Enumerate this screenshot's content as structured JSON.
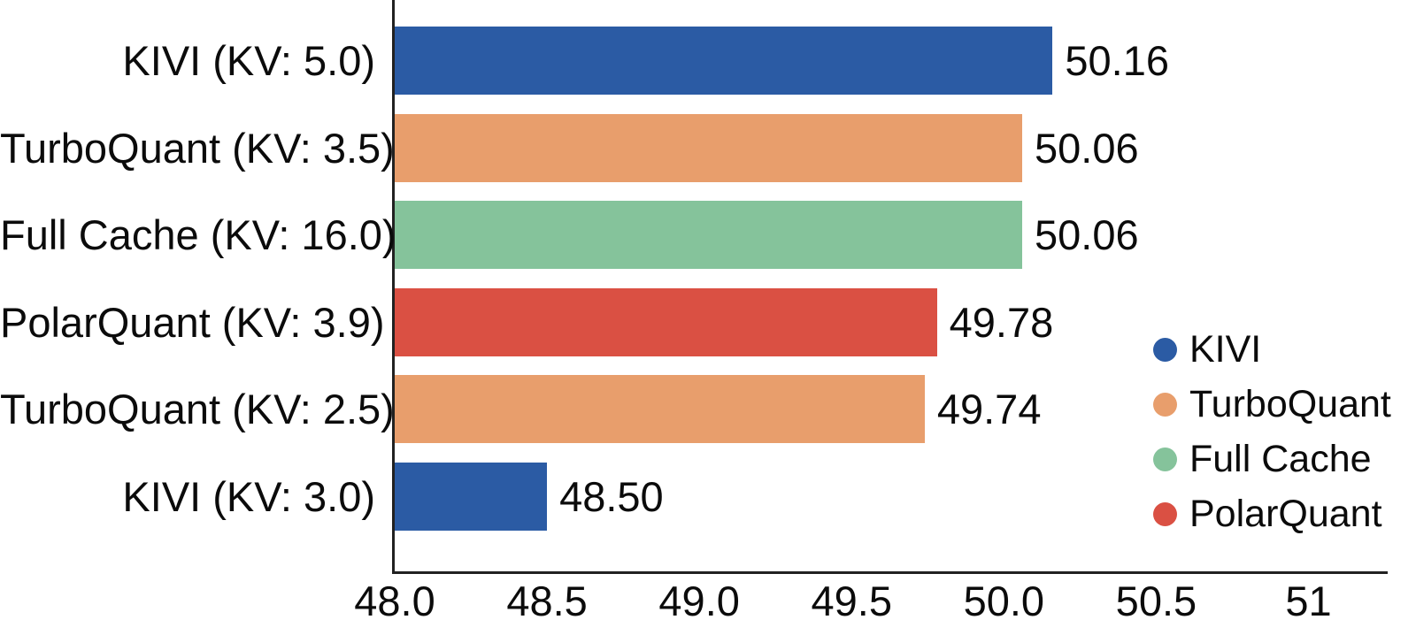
{
  "chart_data": {
    "type": "bar",
    "orientation": "horizontal",
    "title": "",
    "xlabel": "",
    "ylabel": "",
    "grid": false,
    "bars": [
      {
        "label": "KIVI (KV: 5.0)",
        "series": "KIVI",
        "value": 50.16,
        "value_label": "50.16"
      },
      {
        "label": "TurboQuant (KV: 3.5)",
        "series": "TurboQuant",
        "value": 50.06,
        "value_label": "50.06"
      },
      {
        "label": "Full Cache (KV: 16.0)",
        "series": "Full Cache",
        "value": 50.06,
        "value_label": "50.06"
      },
      {
        "label": "PolarQuant (KV: 3.9)",
        "series": "PolarQuant",
        "value": 49.78,
        "value_label": "49.78"
      },
      {
        "label": "TurboQuant (KV: 2.5)",
        "series": "TurboQuant",
        "value": 49.74,
        "value_label": "49.74"
      },
      {
        "label": "KIVI (KV: 3.0)",
        "series": "KIVI",
        "value": 48.5,
        "value_label": "48.50"
      }
    ],
    "series_colors": {
      "KIVI": "#2B5BA4",
      "TurboQuant": "#E89E6C",
      "Full Cache": "#85C39B",
      "PolarQuant": "#DA5043"
    },
    "xaxis": {
      "min": 48.0,
      "max": 51.26,
      "tick_values": [
        48.0,
        48.5,
        49.0,
        49.5,
        50.0,
        50.5,
        51
      ],
      "tick_labels": [
        "48.0",
        "48.5",
        "49.0",
        "49.5",
        "50.0",
        "50.5",
        "51"
      ]
    },
    "legend": [
      {
        "name": "KIVI",
        "color": "#2B5BA4"
      },
      {
        "name": "TurboQuant",
        "color": "#E89E6C"
      },
      {
        "name": "Full Cache",
        "color": "#85C39B"
      },
      {
        "name": "PolarQuant",
        "color": "#DA5043"
      }
    ],
    "legend_position": "right-middle"
  },
  "colors": {
    "background": "#FFFFFF",
    "axis": "#212121",
    "text": "#0B0B0B"
  }
}
